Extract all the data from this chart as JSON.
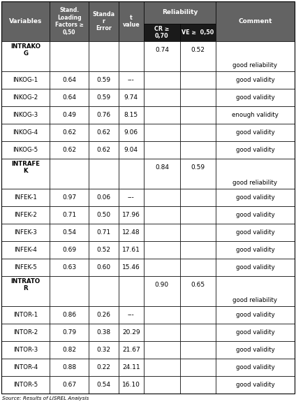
{
  "source": "Source: Results of LISREL Analysis",
  "header_dark": "#636363",
  "header_darker": "#1a1a1a",
  "border_color": "#000000",
  "col_props": [
    0.155,
    0.125,
    0.095,
    0.082,
    0.115,
    0.115,
    0.253
  ],
  "rows": [
    {
      "type": "group",
      "col0": "INTRAKO\nG",
      "cr": "0.74",
      "ve": "0.52",
      "comment": "good reliability"
    },
    {
      "type": "data",
      "col0": "INKOG-1",
      "slf": "0.64",
      "se": "0.59",
      "t": "---",
      "comment": "good validity"
    },
    {
      "type": "data",
      "col0": "INKOG-2",
      "slf": "0.64",
      "se": "0.59",
      "t": "9.74",
      "comment": "good validity"
    },
    {
      "type": "data",
      "col0": "INKOG-3",
      "slf": "0.49",
      "se": "0.76",
      "t": "8.15",
      "comment": "enough validity"
    },
    {
      "type": "data",
      "col0": "INKOG-4",
      "slf": "0.62",
      "se": "0.62",
      "t": "9.06",
      "comment": "good validity"
    },
    {
      "type": "data",
      "col0": "INKOG-5",
      "slf": "0.62",
      "se": "0.62",
      "t": "9.04",
      "comment": "good validity"
    },
    {
      "type": "group",
      "col0": "INTRAFE\nK",
      "cr": "0.84",
      "ve": "0.59",
      "comment": "good reliability"
    },
    {
      "type": "data",
      "col0": "INFEK-1",
      "slf": "0.97",
      "se": "0.06",
      "t": "---",
      "comment": "good validity"
    },
    {
      "type": "data",
      "col0": "INFEK-2",
      "slf": "0.71",
      "se": "0.50",
      "t": "17.96",
      "comment": "good validity"
    },
    {
      "type": "data",
      "col0": "INFEK-3",
      "slf": "0.54",
      "se": "0.71",
      "t": "12.48",
      "comment": "good validity"
    },
    {
      "type": "data",
      "col0": "INFEK-4",
      "slf": "0.69",
      "se": "0.52",
      "t": "17.61",
      "comment": "good validity"
    },
    {
      "type": "data",
      "col0": "INFEK-5",
      "slf": "0.63",
      "se": "0.60",
      "t": "15.46",
      "comment": "good validity"
    },
    {
      "type": "group",
      "col0": "INTRATO\nR",
      "cr": "0.90",
      "ve": "0.65",
      "comment": "good reliability"
    },
    {
      "type": "data",
      "col0": "INTOR-1",
      "slf": "0.86",
      "se": "0.26",
      "t": "---",
      "comment": "good validity"
    },
    {
      "type": "data",
      "col0": "INTOR-2",
      "slf": "0.79",
      "se": "0.38",
      "t": "20.29",
      "comment": "good validity"
    },
    {
      "type": "data",
      "col0": "INTOR-3",
      "slf": "0.82",
      "se": "0.32",
      "t": "21.67",
      "comment": "good validity"
    },
    {
      "type": "data",
      "col0": "INTOR-4",
      "slf": "0.88",
      "se": "0.22",
      "t": "24.11",
      "comment": "good validity"
    },
    {
      "type": "data",
      "col0": "INTOR-5",
      "slf": "0.67",
      "se": "0.54",
      "t": "16.10",
      "comment": "good validity"
    }
  ]
}
